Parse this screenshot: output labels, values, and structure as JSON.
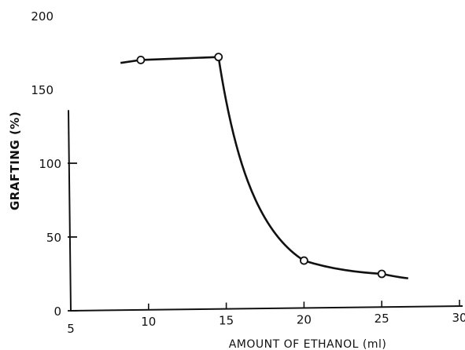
{
  "chart_data": {
    "type": "line",
    "title": "",
    "xlabel": "AMOUNT OF ETHANOL (ml)",
    "ylabel": "GRAFTING (%)",
    "xlim": [
      5,
      30
    ],
    "ylim": [
      0,
      200
    ],
    "x_ticks": [
      "5",
      "10",
      "15",
      "20",
      "25",
      "30"
    ],
    "y_ticks": [
      "0",
      "50",
      "100",
      "150",
      "200"
    ],
    "grid": false,
    "legend": "none",
    "series": [
      {
        "points": [
          {
            "x": 9.5,
            "y": 170
          },
          {
            "x": 14.5,
            "y": 172
          },
          {
            "x": 20,
            "y": 34
          },
          {
            "x": 25,
            "y": 25
          }
        ],
        "curve_extent": {
          "x_start": 8.2,
          "x_end": 26.7,
          "y_start": 168,
          "y_end": 22
        }
      }
    ]
  }
}
